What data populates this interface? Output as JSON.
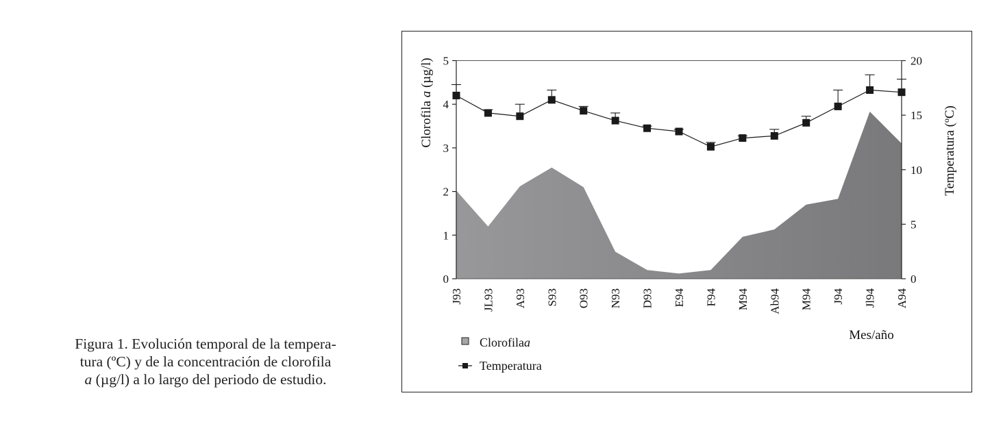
{
  "caption": {
    "lines": [
      "Figura 1. Evolución temporal de la tempera-",
      "tura (ºC) y de la concentración de clorofila",
      "a (µg/l) a lo largo del periodo de estudio."
    ]
  },
  "chart_data": {
    "type": "area+line",
    "title": "",
    "xlabel": "Mes/año",
    "ylabel_left": "Clorofila a (µg/l)",
    "ylabel_right": "Temperatura (ºC)",
    "ylim_left": [
      0,
      5
    ],
    "ylim_right": [
      0,
      20
    ],
    "yticks_left": [
      "0",
      "1",
      "2",
      "3",
      "4",
      "5"
    ],
    "yticks_right": [
      "0",
      "5",
      "10",
      "15",
      "20"
    ],
    "grid": false,
    "categories": [
      "J93",
      "JL93",
      "A93",
      "S93",
      "O93",
      "N93",
      "D93",
      "E94",
      "F94",
      "M94",
      "Ab94",
      "M94",
      "J94",
      "Jl94",
      "A94"
    ],
    "series": [
      {
        "name": "Clorofila a",
        "type": "area",
        "axis": "left",
        "values": [
          2.02,
          1.2,
          2.12,
          2.55,
          2.1,
          0.62,
          0.2,
          0.12,
          0.2,
          0.96,
          1.13,
          1.7,
          1.83,
          3.83,
          3.1
        ]
      },
      {
        "name": "Temperatura",
        "type": "line",
        "axis": "right",
        "marker": "square",
        "values": [
          16.8,
          15.2,
          14.9,
          16.4,
          15.4,
          14.5,
          13.8,
          13.5,
          12.1,
          12.9,
          13.1,
          14.3,
          15.8,
          17.3,
          17.1
        ],
        "error_upper": [
          17.8,
          15.5,
          16.0,
          17.3,
          15.8,
          15.2,
          14.0,
          13.7,
          12.5,
          13.1,
          13.7,
          14.9,
          17.3,
          18.7,
          18.3
        ]
      }
    ],
    "legend": {
      "position": "bottom-left",
      "entries": [
        {
          "label": "Clorofila",
          "label_italic": "a",
          "symbol": "filled-square"
        },
        {
          "label": "Temperatura",
          "symbol": "line-square"
        }
      ]
    },
    "colors": {
      "area_left": "#98989a",
      "area_right": "#79797b",
      "line": "#1a1a1a",
      "marker": "#1a1a1a"
    }
  }
}
